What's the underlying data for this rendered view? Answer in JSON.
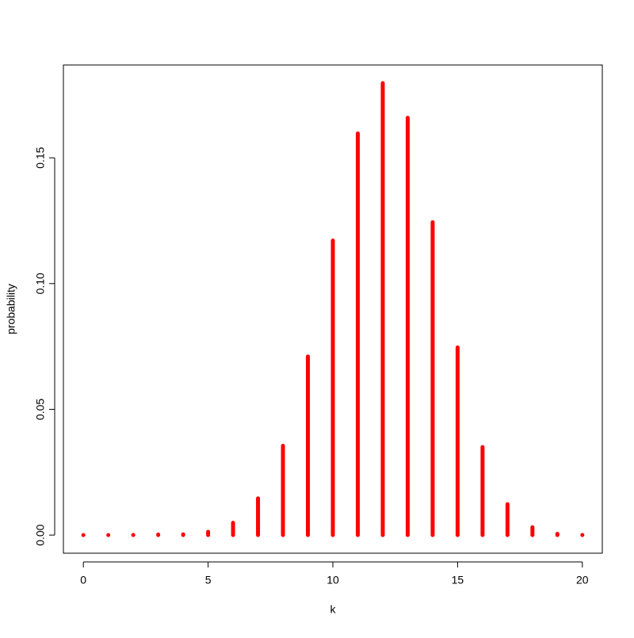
{
  "chart_data": {
    "type": "bar",
    "x_label": "k",
    "y_label": "probability",
    "x": [
      0,
      1,
      2,
      3,
      4,
      5,
      6,
      7,
      8,
      9,
      10,
      11,
      12,
      13,
      14,
      15,
      16,
      17,
      18,
      19,
      20
    ],
    "values": [
      1e-07,
      2e-06,
      3e-05,
      0.0002,
      0.0003,
      0.0013,
      0.0049,
      0.0146,
      0.0355,
      0.071,
      0.1171,
      0.1597,
      0.1797,
      0.1659,
      0.1244,
      0.0746,
      0.035,
      0.0123,
      0.0031,
      0.0005,
      4e-05
    ],
    "color": "#ff0000",
    "xlim": [
      -0.8,
      20.8
    ],
    "xticks": [
      0,
      5,
      10,
      15,
      20
    ],
    "ylim": [
      -0.0072,
      0.1869
    ],
    "yticks": [
      {
        "value": 0,
        "label": "0.00"
      },
      {
        "value": 0.05,
        "label": "0.05"
      },
      {
        "value": 0.1,
        "label": "0.10"
      },
      {
        "value": 0.15,
        "label": "0.15"
      }
    ],
    "grid": false
  }
}
